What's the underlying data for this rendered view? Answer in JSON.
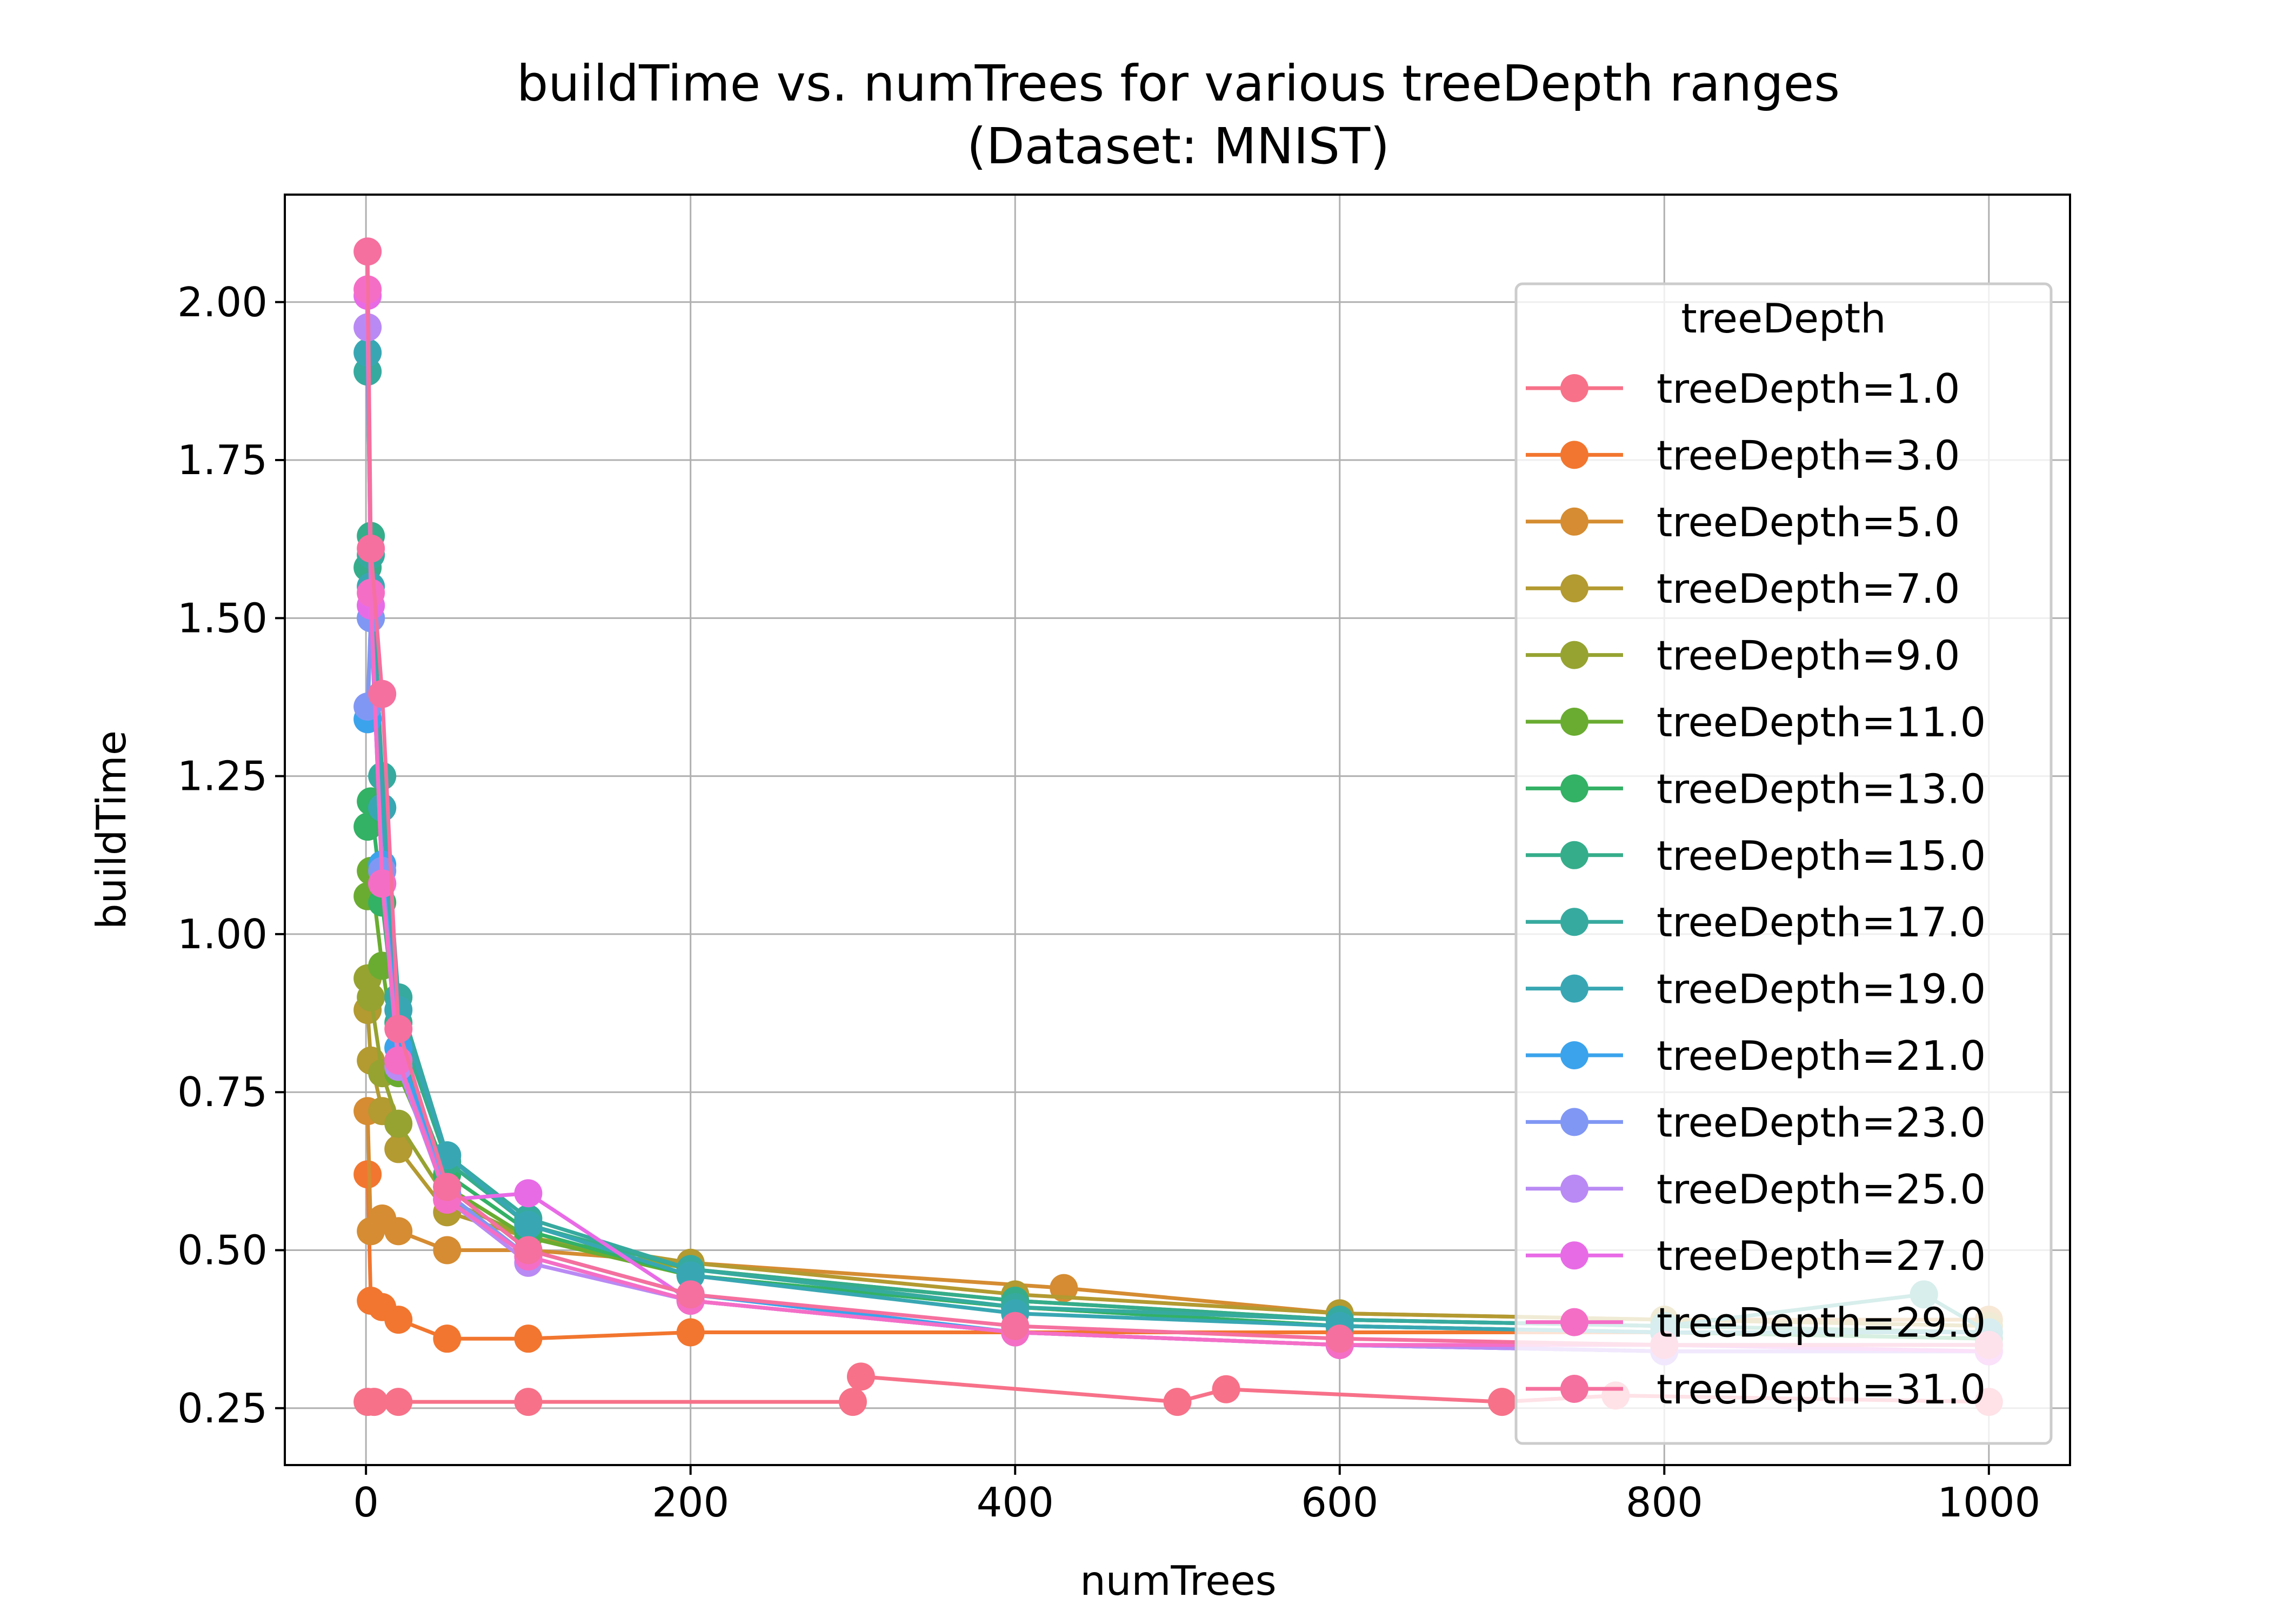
{
  "chart_data": {
    "type": "line",
    "title": "buildTime vs. numTrees for various treeDepth ranges",
    "subtitle": "(Dataset: MNIST)",
    "xlabel": "numTrees",
    "ylabel": "buildTime",
    "xlim": [
      -50,
      1050
    ],
    "ylim": [
      0.16,
      2.17
    ],
    "xticks": [
      0,
      200,
      400,
      600,
      800,
      1000
    ],
    "xtick_labels": [
      "0",
      "200",
      "400",
      "600",
      "800",
      "1000"
    ],
    "yticks": [
      0.25,
      0.5,
      0.75,
      1.0,
      1.25,
      1.5,
      1.75,
      2.0
    ],
    "ytick_labels": [
      "0.25",
      "0.50",
      "0.75",
      "1.00",
      "1.25",
      "1.50",
      "1.75",
      "2.00"
    ],
    "grid": true,
    "legend": {
      "title": "treeDepth",
      "placement": "upper right"
    },
    "series": [
      {
        "name": "treeDepth=1.0",
        "color": "#f77189",
        "x": [
          1,
          5,
          20,
          100,
          300,
          305,
          500,
          530,
          700,
          770,
          1000
        ],
        "y": [
          0.26,
          0.26,
          0.26,
          0.26,
          0.26,
          0.3,
          0.26,
          0.28,
          0.26,
          0.27,
          0.26
        ]
      },
      {
        "name": "treeDepth=3.0",
        "color": "#f2762f",
        "x": [
          1,
          3,
          10,
          20,
          50,
          100,
          200,
          400,
          600,
          800,
          1000
        ],
        "y": [
          0.62,
          0.42,
          0.41,
          0.39,
          0.36,
          0.36,
          0.37,
          0.37,
          0.37,
          0.37,
          0.37
        ]
      },
      {
        "name": "treeDepth=5.0",
        "color": "#d58c32",
        "x": [
          1,
          3,
          10,
          20,
          50,
          100,
          200,
          430,
          600,
          800,
          1000
        ],
        "y": [
          0.72,
          0.53,
          0.55,
          0.53,
          0.5,
          0.5,
          0.48,
          0.44,
          0.4,
          0.39,
          0.39
        ]
      },
      {
        "name": "treeDepth=7.0",
        "color": "#b39a31",
        "x": [
          1,
          3,
          10,
          20,
          50,
          100,
          200,
          400,
          600,
          800,
          1000
        ],
        "y": [
          0.88,
          0.8,
          0.72,
          0.66,
          0.56,
          0.52,
          0.48,
          0.43,
          0.4,
          0.39,
          0.38
        ]
      },
      {
        "name": "treeDepth=9.0",
        "color": "#96a331",
        "x": [
          1,
          3,
          10,
          20,
          50,
          100,
          200,
          400,
          600,
          800,
          1000
        ],
        "y": [
          0.93,
          0.9,
          0.78,
          0.7,
          0.58,
          0.52,
          0.47,
          0.42,
          0.39,
          0.38,
          0.37
        ]
      },
      {
        "name": "treeDepth=11.0",
        "color": "#6aac31",
        "x": [
          1,
          3,
          10,
          20,
          50,
          100,
          200,
          400,
          600,
          800,
          1000
        ],
        "y": [
          1.06,
          1.1,
          0.95,
          0.78,
          0.6,
          0.52,
          0.46,
          0.41,
          0.38,
          0.37,
          0.36
        ]
      },
      {
        "name": "treeDepth=13.0",
        "color": "#33b165",
        "x": [
          1,
          3,
          10,
          20,
          50,
          100,
          200,
          400,
          600,
          800,
          1000
        ],
        "y": [
          1.17,
          1.21,
          1.05,
          0.82,
          0.62,
          0.53,
          0.46,
          0.41,
          0.38,
          0.37,
          0.36
        ]
      },
      {
        "name": "treeDepth=15.0",
        "color": "#35ad8b",
        "x": [
          1,
          3,
          10,
          20,
          50,
          100,
          200,
          400,
          600,
          800,
          1000
        ],
        "y": [
          1.58,
          1.63,
          1.2,
          0.86,
          0.64,
          0.54,
          0.47,
          0.42,
          0.39,
          0.38,
          0.37
        ]
      },
      {
        "name": "treeDepth=17.0",
        "color": "#37aa9f",
        "x": [
          1,
          3,
          10,
          20,
          50,
          100,
          200,
          400,
          600,
          800,
          960,
          1000
        ],
        "y": [
          1.89,
          1.6,
          1.25,
          0.9,
          0.65,
          0.55,
          0.47,
          0.41,
          0.39,
          0.38,
          0.43,
          0.37
        ]
      },
      {
        "name": "treeDepth=19.0",
        "color": "#38a7b3",
        "x": [
          1,
          3,
          10,
          20,
          50,
          100,
          200,
          400,
          600,
          800,
          1000
        ],
        "y": [
          1.92,
          1.55,
          1.2,
          0.88,
          0.65,
          0.54,
          0.46,
          0.4,
          0.38,
          0.37,
          0.37
        ]
      },
      {
        "name": "treeDepth=21.0",
        "color": "#3ba3ec",
        "x": [
          1,
          3,
          10,
          20,
          50,
          100,
          200,
          400,
          600,
          800,
          1000
        ],
        "y": [
          1.34,
          1.5,
          1.11,
          0.82,
          0.6,
          0.5,
          0.43,
          0.37,
          0.35,
          0.34,
          0.34
        ]
      },
      {
        "name": "treeDepth=23.0",
        "color": "#8197f4",
        "x": [
          1,
          3,
          10,
          20,
          50,
          100,
          200,
          400,
          600,
          800,
          1000
        ],
        "y": [
          1.36,
          1.5,
          1.1,
          0.8,
          0.59,
          0.49,
          0.42,
          0.37,
          0.35,
          0.34,
          0.34
        ]
      },
      {
        "name": "treeDepth=25.0",
        "color": "#b98af4",
        "x": [
          1,
          3,
          10,
          20,
          50,
          100,
          200,
          400,
          600,
          800,
          1000
        ],
        "y": [
          1.96,
          1.52,
          1.08,
          0.79,
          0.58,
          0.48,
          0.42,
          0.37,
          0.35,
          0.34,
          0.34
        ]
      },
      {
        "name": "treeDepth=27.0",
        "color": "#e86be6",
        "x": [
          1,
          3,
          10,
          20,
          50,
          100,
          200,
          400,
          600,
          800,
          1000
        ],
        "y": [
          2.01,
          1.52,
          1.08,
          0.8,
          0.58,
          0.59,
          0.42,
          0.37,
          0.35,
          0.35,
          0.34
        ]
      },
      {
        "name": "treeDepth=29.0",
        "color": "#f46ec6",
        "x": [
          1,
          3,
          10,
          20,
          50,
          100,
          200,
          400,
          600,
          800,
          1000
        ],
        "y": [
          2.02,
          1.54,
          1.08,
          0.8,
          0.58,
          0.49,
          0.42,
          0.37,
          0.35,
          0.35,
          0.35
        ]
      },
      {
        "name": "treeDepth=31.0",
        "color": "#f5709e",
        "x": [
          1,
          3,
          10,
          20,
          50,
          100,
          200,
          400,
          600,
          800,
          1000
        ],
        "y": [
          2.08,
          1.61,
          1.38,
          0.85,
          0.6,
          0.5,
          0.43,
          0.38,
          0.36,
          0.35,
          0.35
        ]
      }
    ]
  }
}
